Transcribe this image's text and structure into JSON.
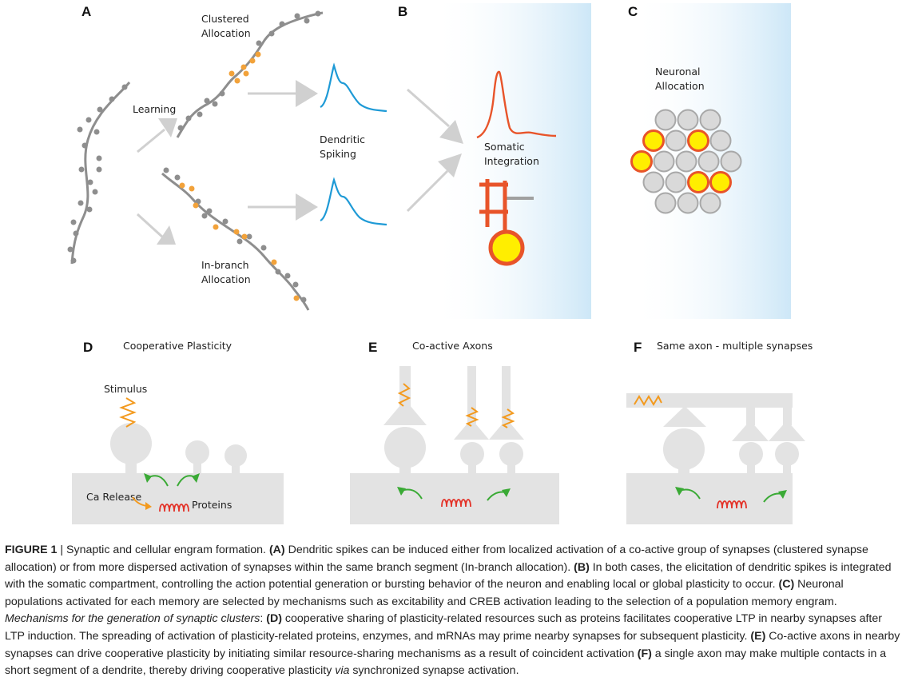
{
  "panels": {
    "A": {
      "letter": "A",
      "learning": "Learning",
      "clustered_line1": "Clustered",
      "clustered_line2": "Allocation",
      "inbranch_line1": "In-branch",
      "inbranch_line2": "Allocation",
      "dendritic_line1": "Dendritic",
      "dendritic_line2": "Spiking"
    },
    "B": {
      "letter": "B",
      "somatic_line1": "Somatic",
      "somatic_line2": "Integration"
    },
    "C": {
      "letter": "C",
      "neuronal_line1": "Neuronal",
      "neuronal_line2": "Allocation"
    },
    "D": {
      "letter": "D",
      "title": "Cooperative Plasticity",
      "stimulus": "Stimulus",
      "ca_release": "Ca Release",
      "proteins": "Proteins"
    },
    "E": {
      "letter": "E",
      "title": "Co-active Axons"
    },
    "F": {
      "letter": "F",
      "title": "Same axon - multiple synapses"
    }
  },
  "colors": {
    "dendrite": "#8e8e8e",
    "spine_grey": "#8e8e8e",
    "spine_orange": "#f2a23a",
    "dendritic_spike": "#1e9ad6",
    "somatic_spike": "#e8542a",
    "soma_yellow": "#ffee00",
    "neuron_grey": "#d9d9d9",
    "arrow_grey": "#d0d0d0",
    "green_arrow": "#3aaa35",
    "stimulus_orange": "#f39a1e",
    "protein_red": "#e3342a",
    "light_blue": "#cfe8f7"
  },
  "caption": {
    "label": "FIGURE 1",
    "sep": " | ",
    "intro": " Synaptic and cellular engram formation. ",
    "a_tag": "(A)",
    "a_text": " Dendritic spikes can be induced either from localized activation of a co-active group of synapses (clustered synapse allocation) or from more dispersed activation of synapses within the same branch segment (In-branch allocation). ",
    "b_tag": "(B)",
    "b_text": " In both cases, the elicitation of dendritic spikes is integrated with the somatic compartment, controlling the action potential generation or bursting behavior of the neuron and enabling local or global plasticity to occur. ",
    "c_tag": "(C)",
    "c_text": " Neuronal populations activated for each memory are selected by mechanisms such as excitability and CREB activation leading to the selection of a population memory engram. ",
    "mech": "Mechanisms for the generation of synaptic clusters",
    "mech_colon": ": ",
    "d_tag": "(D)",
    "d_text": " cooperative sharing of plasticity-related resources such as proteins facilitates cooperative LTP in nearby synapses after LTP induction. The spreading of activation of plasticity-related proteins, enzymes, and mRNAs may prime nearby synapses for subsequent plasticity. ",
    "e_tag": "(E)",
    "e_text": " Co-active axons in nearby synapses can drive cooperative plasticity by initiating similar resource-sharing mechanisms as a result of coincident activation ",
    "f_tag": "(F)",
    "f_text": " a single axon may make multiple contacts in a short segment of a dendrite, thereby driving cooperative plasticity ",
    "via": "via",
    "end": " synchronized synapse activation."
  }
}
